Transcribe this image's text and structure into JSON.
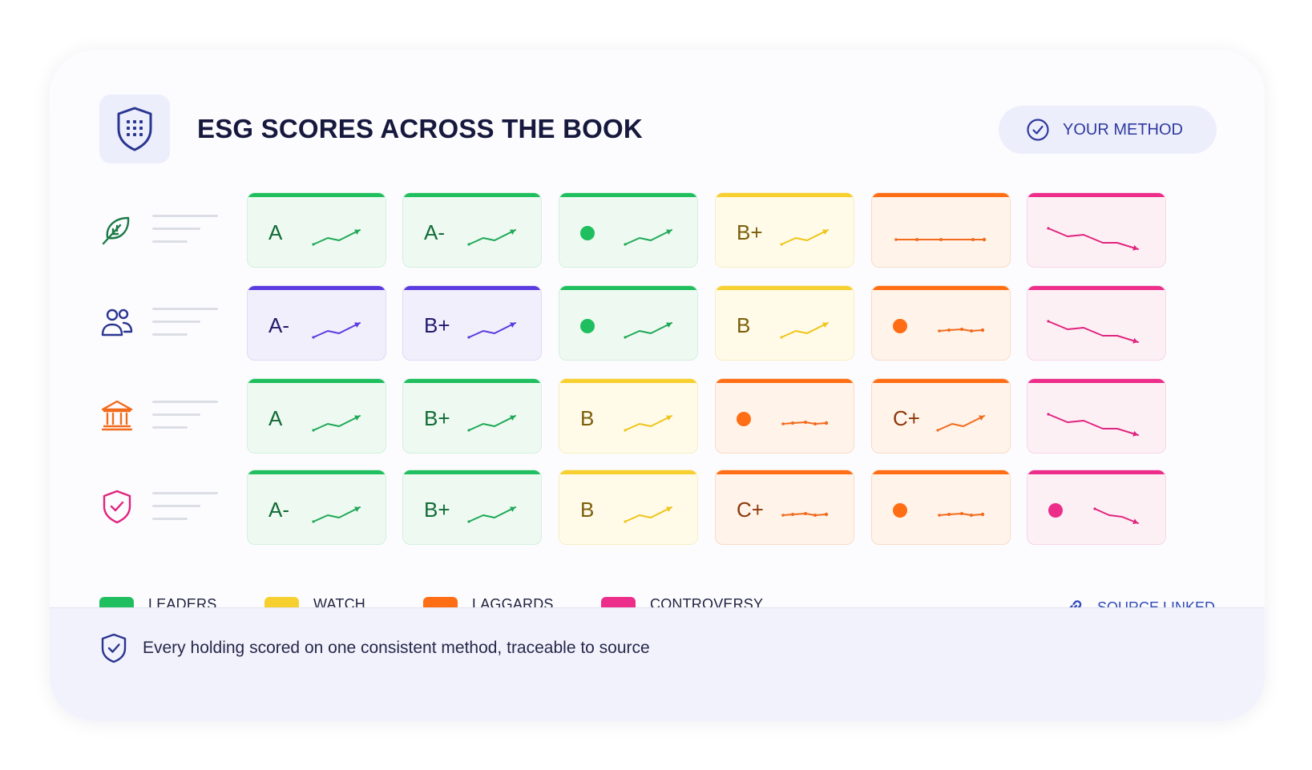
{
  "title": "ESG SCORES ACROSS THE BOOK",
  "method_label": "YOUR METHOD",
  "colors": {
    "leaders": "#1fbf5f",
    "watch": "#f7d030",
    "laggards": "#ff6d14",
    "controversy": "#ec2d8a",
    "social": "#5b3be0",
    "brand": "#2a3590"
  },
  "rows": [
    {
      "icon": "leaf-icon",
      "tiles": [
        {
          "status": "leaders",
          "grade": "A",
          "trend": "up"
        },
        {
          "status": "leaders",
          "grade": "A-",
          "trend": "up"
        },
        {
          "status": "leaders",
          "grade": "",
          "trend": "up",
          "dot": true
        },
        {
          "status": "watch",
          "grade": "B+",
          "trend": "up"
        },
        {
          "status": "laggards",
          "grade": "",
          "trend": "flat-long"
        },
        {
          "status": "controversy",
          "grade": "",
          "trend": "down"
        }
      ]
    },
    {
      "icon": "people-icon",
      "tiles": [
        {
          "status": "social",
          "grade": "A-",
          "trend": "up"
        },
        {
          "status": "social",
          "grade": "B+",
          "trend": "up"
        },
        {
          "status": "leaders",
          "grade": "",
          "trend": "up",
          "dot": true
        },
        {
          "status": "watch",
          "grade": "B",
          "trend": "up"
        },
        {
          "status": "laggards",
          "grade": "",
          "trend": "flat",
          "dot": true
        },
        {
          "status": "controversy",
          "grade": "",
          "trend": "down"
        }
      ]
    },
    {
      "icon": "institution-icon",
      "tiles": [
        {
          "status": "leaders",
          "grade": "A",
          "trend": "up"
        },
        {
          "status": "leaders",
          "grade": "B+",
          "trend": "up"
        },
        {
          "status": "watch",
          "grade": "B",
          "trend": "up"
        },
        {
          "status": "laggards",
          "grade": "",
          "trend": "flat",
          "dot": true
        },
        {
          "status": "laggards",
          "grade": "C+",
          "trend": "up"
        },
        {
          "status": "controversy",
          "grade": "",
          "trend": "down"
        }
      ]
    },
    {
      "icon": "shield-check-icon",
      "tiles": [
        {
          "status": "leaders",
          "grade": "A-",
          "trend": "up"
        },
        {
          "status": "leaders",
          "grade": "B+",
          "trend": "up"
        },
        {
          "status": "watch",
          "grade": "B",
          "trend": "up"
        },
        {
          "status": "laggards",
          "grade": "C+",
          "trend": "flat"
        },
        {
          "status": "laggards",
          "grade": "",
          "trend": "flat",
          "dot": true
        },
        {
          "status": "controversy",
          "grade": "",
          "trend": "down-short",
          "dot": true
        }
      ]
    }
  ],
  "legend": [
    {
      "label": "LEADERS",
      "color": "#1fbf5f"
    },
    {
      "label": "WATCH",
      "color": "#f7d030"
    },
    {
      "label": "LAGGARDS",
      "color": "#ff6d14"
    },
    {
      "label": "CONTROVERSY",
      "color": "#ec2d8a"
    }
  ],
  "source_label": "SOURCE LINKED",
  "footer_text": "Every holding scored on one consistent method, traceable to source"
}
